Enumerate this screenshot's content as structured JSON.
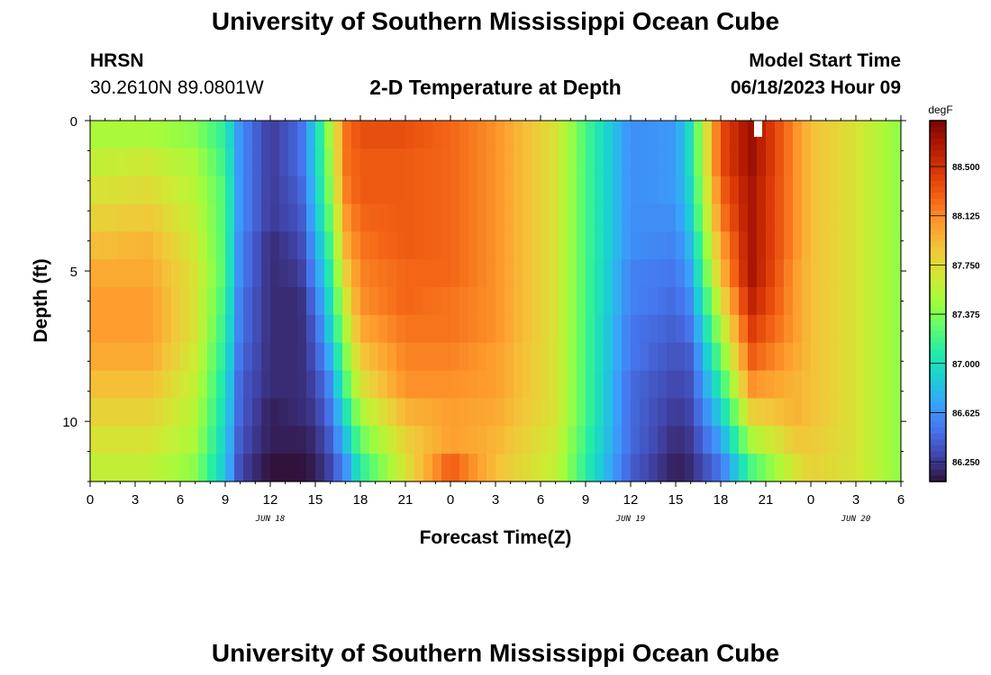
{
  "header": {
    "title": "University of Southern Mississippi Ocean Cube",
    "station": "HRSN",
    "coords": "30.2610N  89.0801W",
    "subtitle": "2-D Temperature at Depth",
    "model_start_label": "Model Start Time",
    "model_start_value": "06/18/2023 Hour 09"
  },
  "footer": {
    "title": "University of Southern Mississippi Ocean Cube"
  },
  "chart_data": {
    "type": "heatmap",
    "title": "2-D Temperature at Depth",
    "xlabel": "Forecast Time(Z)",
    "ylabel": "Depth (ft)",
    "x_tick_labels": [
      "0",
      "3",
      "6",
      "9",
      "12",
      "15",
      "18",
      "21",
      "0",
      "3",
      "6",
      "9",
      "12",
      "15",
      "18",
      "21",
      "0",
      "3",
      "6"
    ],
    "x_range_hours": [
      0,
      54
    ],
    "date_labels": [
      {
        "label": "JUN 18",
        "hour": 12
      },
      {
        "label": "JUN 19",
        "hour": 36
      },
      {
        "label": "JUN 20",
        "hour": 51
      }
    ],
    "y_tick_labels": [
      "0",
      "5",
      "10"
    ],
    "ylim_ft": [
      0,
      12
    ],
    "colorbar": {
      "unit": "degF",
      "tick_labels": [
        "88.500",
        "88.125",
        "87.750",
        "87.375",
        "87.000",
        "86.625",
        "86.250"
      ],
      "range": [
        86.1,
        88.85
      ],
      "colors": [
        "#30123b",
        "#4145ab",
        "#4675ed",
        "#39a2fc",
        "#1bcfd4",
        "#24eca6",
        "#61fc6c",
        "#a4fc3b",
        "#d1e834",
        "#f3c63a",
        "#fe9b2d",
        "#f36315",
        "#d93806",
        "#b11901",
        "#7a0403"
      ]
    },
    "profile_hours": [
      0,
      4,
      7,
      9,
      10,
      12,
      14,
      15,
      16,
      17,
      18,
      21,
      24,
      27,
      31,
      33,
      36,
      39,
      40,
      42,
      44,
      47,
      48,
      51,
      54
    ],
    "temps_degF": [
      [
        87.5,
        87.5,
        87.4,
        87.1,
        86.6,
        86.25,
        86.45,
        86.9,
        87.5,
        88.2,
        88.35,
        88.35,
        88.25,
        88.1,
        87.7,
        87.2,
        86.6,
        86.65,
        87.0,
        88.35,
        88.75,
        88.1,
        87.9,
        87.7,
        87.4
      ],
      [
        87.6,
        87.65,
        87.5,
        87.15,
        86.6,
        86.25,
        86.45,
        86.9,
        87.45,
        88.2,
        88.3,
        88.3,
        88.25,
        88.1,
        87.7,
        87.2,
        86.6,
        86.65,
        87.0,
        88.35,
        88.75,
        88.1,
        87.9,
        87.7,
        87.4
      ],
      [
        87.7,
        87.75,
        87.55,
        87.2,
        86.6,
        86.25,
        86.4,
        86.85,
        87.4,
        88.15,
        88.3,
        88.3,
        88.25,
        88.1,
        87.7,
        87.2,
        86.6,
        86.65,
        86.95,
        88.25,
        88.7,
        88.1,
        87.9,
        87.7,
        87.4
      ],
      [
        87.8,
        87.85,
        87.6,
        87.2,
        86.6,
        86.25,
        86.35,
        86.8,
        87.3,
        88.05,
        88.25,
        88.3,
        88.25,
        88.1,
        87.7,
        87.2,
        86.6,
        86.6,
        86.9,
        88.15,
        88.7,
        88.1,
        87.9,
        87.7,
        87.4
      ],
      [
        87.9,
        87.95,
        87.65,
        87.2,
        86.55,
        86.2,
        86.3,
        86.7,
        87.2,
        87.95,
        88.2,
        88.3,
        88.25,
        88.1,
        87.7,
        87.2,
        86.6,
        86.55,
        86.8,
        88.0,
        88.7,
        88.1,
        87.9,
        87.7,
        87.4
      ],
      [
        88.0,
        88.0,
        87.7,
        87.2,
        86.55,
        86.2,
        86.25,
        86.6,
        87.1,
        87.8,
        88.15,
        88.25,
        88.25,
        88.1,
        87.7,
        87.2,
        86.55,
        86.5,
        86.7,
        87.9,
        88.7,
        88.05,
        87.9,
        87.7,
        87.4
      ],
      [
        88.05,
        88.05,
        87.7,
        87.15,
        86.5,
        86.2,
        86.2,
        86.5,
        87.0,
        87.65,
        88.1,
        88.25,
        88.2,
        88.1,
        87.7,
        87.2,
        86.55,
        86.45,
        86.6,
        87.7,
        88.6,
        88.05,
        87.9,
        87.7,
        87.4
      ],
      [
        88.05,
        88.05,
        87.7,
        87.1,
        86.5,
        86.2,
        86.2,
        86.4,
        86.9,
        87.5,
        88.0,
        88.2,
        88.2,
        88.1,
        87.7,
        87.2,
        86.5,
        86.4,
        86.5,
        87.5,
        88.45,
        88.05,
        87.9,
        87.7,
        87.4
      ],
      [
        88.0,
        88.0,
        87.65,
        87.05,
        86.45,
        86.2,
        86.2,
        86.35,
        86.75,
        87.35,
        87.85,
        88.15,
        88.15,
        88.05,
        87.7,
        87.2,
        86.5,
        86.35,
        86.4,
        87.3,
        88.3,
        88.0,
        87.9,
        87.7,
        87.4
      ],
      [
        87.9,
        87.9,
        87.6,
        87.0,
        86.4,
        86.2,
        86.2,
        86.3,
        86.6,
        87.2,
        87.7,
        88.1,
        88.1,
        88.05,
        87.7,
        87.2,
        86.45,
        86.3,
        86.35,
        87.1,
        88.1,
        87.95,
        87.9,
        87.7,
        87.4
      ],
      [
        87.8,
        87.8,
        87.55,
        86.95,
        86.4,
        86.15,
        86.2,
        86.25,
        86.5,
        87.0,
        87.5,
        87.95,
        88.05,
        88.0,
        87.7,
        87.2,
        86.45,
        86.25,
        86.3,
        86.9,
        87.8,
        87.95,
        87.9,
        87.7,
        87.4
      ],
      [
        87.7,
        87.7,
        87.5,
        86.9,
        86.35,
        86.15,
        86.15,
        86.2,
        86.4,
        86.8,
        87.3,
        87.8,
        88.05,
        87.95,
        87.65,
        87.15,
        86.45,
        86.2,
        86.25,
        86.7,
        87.5,
        87.85,
        87.85,
        87.7,
        87.4
      ],
      [
        87.6,
        87.6,
        87.4,
        86.85,
        86.3,
        86.1,
        86.1,
        86.15,
        86.3,
        86.6,
        87.1,
        87.7,
        88.3,
        87.9,
        87.6,
        87.1,
        86.4,
        86.15,
        86.2,
        86.5,
        87.2,
        87.7,
        87.8,
        87.7,
        87.4
      ]
    ]
  }
}
